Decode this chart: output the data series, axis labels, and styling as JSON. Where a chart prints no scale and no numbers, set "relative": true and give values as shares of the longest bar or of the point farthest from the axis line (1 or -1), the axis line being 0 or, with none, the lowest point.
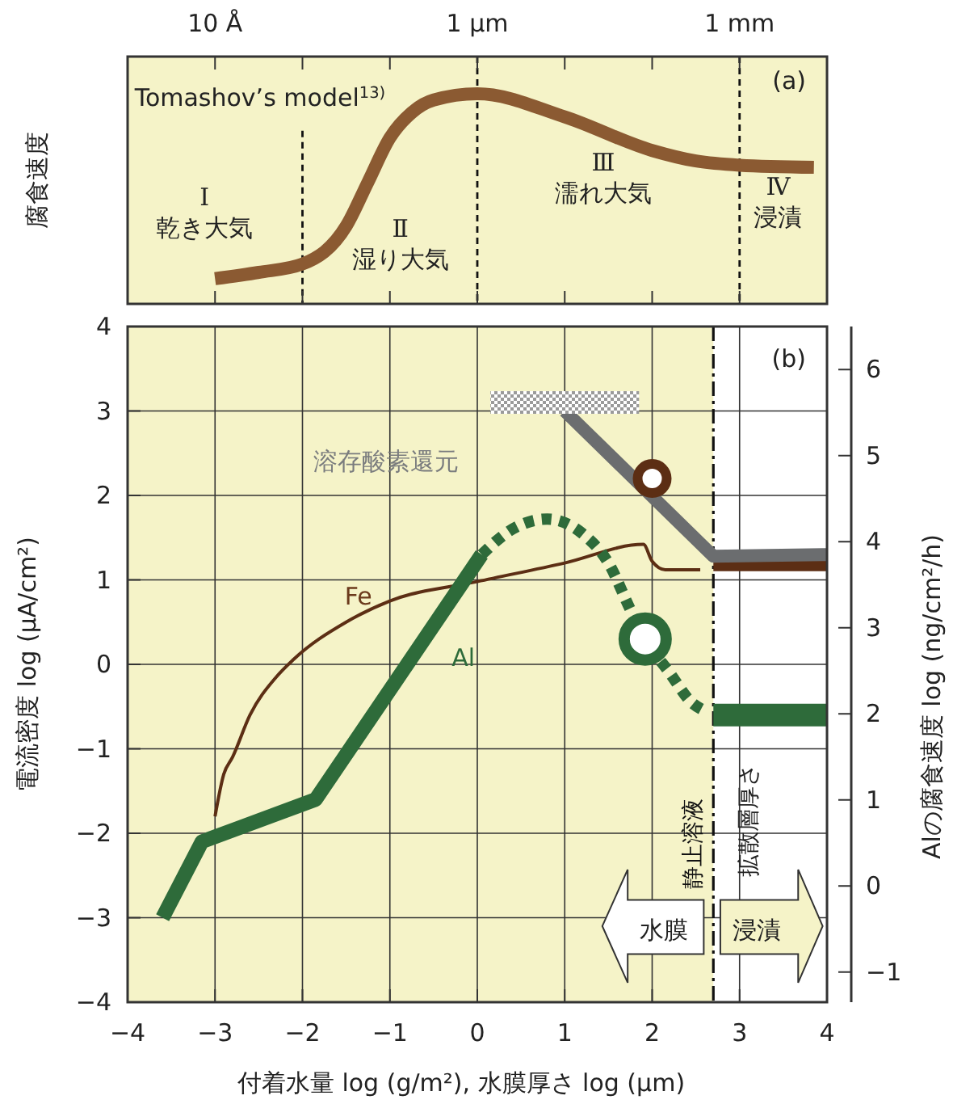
{
  "chart_data": [
    {
      "type": "line",
      "relative": true,
      "ylabel": "腐食速度",
      "xlim": [
        -4,
        4
      ],
      "xticks": [
        -4,
        -3,
        -2,
        -1,
        0,
        1,
        2,
        3,
        4
      ],
      "tick_labels": false,
      "grid": false,
      "series": [
        {
          "color": "#8b5a32",
          "x": [
            -3,
            -2.5,
            -2,
            -1.5,
            -1.25,
            -1,
            -0.75,
            -0.5,
            0,
            1,
            2,
            2.5,
            3,
            3.85
          ],
          "values": [
            0.12,
            0.15,
            0.19,
            0.37,
            0.58,
            0.79,
            0.91,
            0.97,
            1,
            0.89,
            0.73,
            0.68,
            0.66,
            0.65
          ]
        }
      ],
      "ref_lines": [
        {
          "axis": "x",
          "value": -2,
          "line_style": "dashed"
        },
        {
          "axis": "x",
          "value": 0,
          "line_style": "dashed"
        },
        {
          "axis": "x",
          "value": 3,
          "line_style": "dashed"
        }
      ],
      "annotations": [
        "Tomashov’s model$^{13)}$",
        "(a)",
        "Ⅰ\n乾き大気",
        "Ⅱ\n湿り大気",
        "Ⅲ\n濡れ大気",
        "Ⅳ\n浸漬",
        "10 Å",
        "1 µm",
        "1 mm"
      ]
    },
    {
      "type": "line",
      "xlabel": "付着水量 log (g/m²), 水膜厚さ log (µm)",
      "ylabel": "電流密度 log (µA/cm²)",
      "y2label": "Alの腐食速度 log (ng/cm²/h)",
      "xlim": [
        -4,
        4
      ],
      "xticks": [
        -4,
        -3,
        -2,
        -1,
        0,
        1,
        2,
        3,
        4
      ],
      "ylim": [
        -4,
        4
      ],
      "yticks": [
        -4,
        -3,
        -2,
        -1,
        0,
        1,
        2,
        3,
        4
      ],
      "y2lim": [
        -1.35,
        6.5
      ],
      "y2ticks": [
        -1,
        0,
        1,
        2,
        3,
        4,
        5,
        6
      ],
      "grid": true,
      "series": [
        {
          "color": "#5c2e14",
          "x": [
            -3,
            -2.9,
            -2.8,
            -2.6,
            -2.3,
            -2.1,
            -1.5,
            -1,
            0,
            1,
            1.9,
            2,
            2.15,
            2.55
          ],
          "values": [
            -1.8,
            -1.3,
            -1.1,
            -0.6,
            -0.15,
            0.06,
            0.5,
            0.75,
            0.98,
            1.2,
            1.42,
            1.22,
            1.12,
            1.12
          ]
        },
        {
          "color": "#5c2e14",
          "x": [
            2.7,
            4
          ],
          "values": [
            1.18,
            1.18
          ]
        },
        {
          "color": "#6b6d6f",
          "x": [
            1,
            2.7,
            4
          ],
          "values": [
            3,
            1.28,
            1.3
          ]
        },
        {
          "color": "#9a9a9a",
          "x": [
            0.15,
            1.85
          ],
          "values": [
            3.1,
            3.1
          ]
        },
        {
          "color": "#2e6b3a",
          "x": [
            -3.6,
            -3.15,
            -1.85,
            0.05
          ],
          "values": [
            -3,
            -2.1,
            -1.6,
            1.3
          ]
        },
        {
          "color": "#2e6b3a",
          "line_style": "dotted",
          "x": [
            0.05,
            0.4,
            0.8,
            1.2,
            1.5,
            1.75,
            1.92,
            2.2,
            2.45,
            2.6
          ],
          "values": [
            1.3,
            1.6,
            1.72,
            1.55,
            1.2,
            0.65,
            0.3,
            -0.1,
            -0.45,
            -0.55
          ]
        },
        {
          "color": "#2e6b3a",
          "x": [
            2.7,
            4
          ],
          "values": [
            -0.6,
            -0.6
          ]
        },
        {
          "type": "scatter",
          "marker": "circle",
          "color": "#5c2e14",
          "x": [
            2
          ],
          "values": [
            2.2
          ]
        },
        {
          "type": "scatter",
          "marker": "circle",
          "color": "#2e6b3a",
          "x": [
            1.92
          ],
          "values": [
            0.3
          ]
        }
      ],
      "bands": [
        {
          "axis": "x",
          "from": -4,
          "to": 2.7,
          "color": "#f5f3c8"
        }
      ],
      "ref_lines": [
        {
          "axis": "x",
          "value": 2.7,
          "label": "静止溶液",
          "line_style": "dashed"
        }
      ],
      "annotations": [
        "(b)",
        "溶存酸素還元",
        "Fe",
        "Al",
        "拡散層厚さ",
        "水膜",
        "浸漬"
      ]
    }
  ]
}
